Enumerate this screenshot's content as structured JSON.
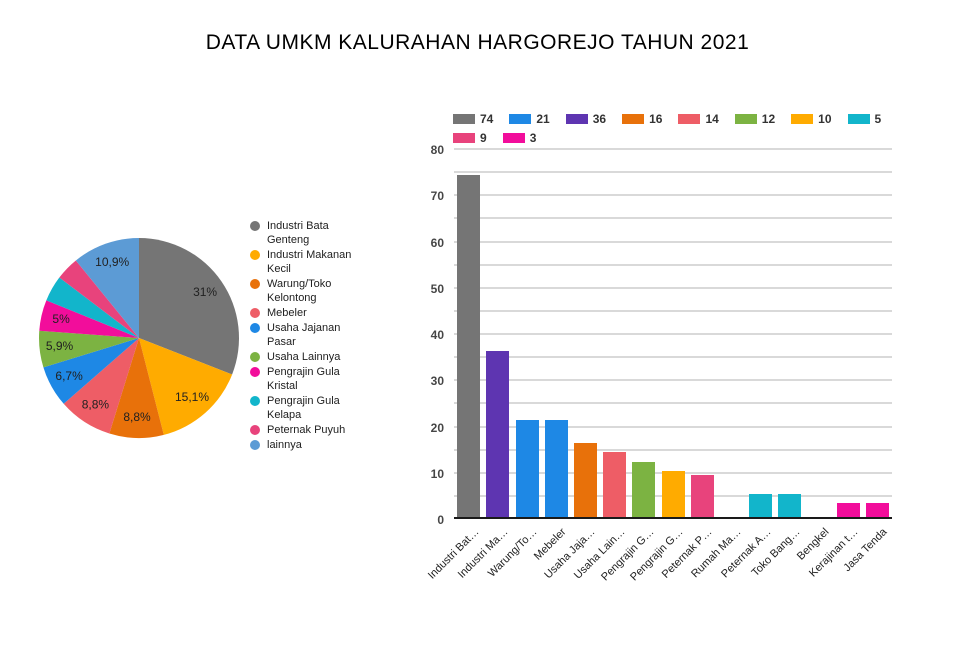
{
  "page": {
    "title": "DATA UMKM KALURAHAN HARGOREJO TAHUN 2021",
    "background": "#ffffff"
  },
  "chart_data": [
    {
      "type": "pie",
      "title": "",
      "legend_position": "right",
      "slices": [
        {
          "label": "Industri Bata Genteng",
          "percent": 31,
          "display": "31%",
          "color": "#757575"
        },
        {
          "label": "Industri Makanan Kecil",
          "percent": 15.1,
          "display": "15,1%",
          "color": "#FFAB00"
        },
        {
          "label": "Warung/Toko Kelontong",
          "percent": 8.8,
          "display": "8,8%",
          "color": "#E8710A"
        },
        {
          "label": "Mebeler",
          "percent": 8.8,
          "display": "8,8%",
          "color": "#EE5D66"
        },
        {
          "label": "Usaha Jajanan Pasar",
          "percent": 6.7,
          "display": "6,7%",
          "color": "#1E88E5"
        },
        {
          "label": "Usaha Lainnya",
          "percent": 5.9,
          "display": "5,9%",
          "color": "#7CB342"
        },
        {
          "label": "Pengrajin Gula Kristal",
          "percent": 5,
          "display": "5%",
          "color": "#F20D9B"
        },
        {
          "label": "Pengrajin Gula Kelapa",
          "percent": 4.2,
          "display": "",
          "color": "#12B5CB"
        },
        {
          "label": "Peternak Puyuh",
          "percent": 3.8,
          "display": "",
          "color": "#E8437C"
        },
        {
          "label": "lainnya",
          "percent": 10.9,
          "display": "10,9%",
          "color": "#5C9BD5"
        }
      ]
    },
    {
      "type": "bar",
      "title": "",
      "categories": [
        "Industri Bat…",
        "Industri Ma…",
        "Warung/To…",
        "Mebeler",
        "Usaha Jaja…",
        "Usaha Lain…",
        "Pengrajin G…",
        "Pengrajin G…",
        "Peternak P…",
        "Rumah Ma…",
        "Peternak A…",
        "Toko Bang…",
        "Bengkel",
        "Kerajinan t…",
        "Jasa Tenda"
      ],
      "values": [
        74,
        36,
        21,
        21,
        16,
        14,
        12,
        10,
        9,
        0,
        5,
        5,
        0,
        3,
        3
      ],
      "bar_colors": [
        "#757575",
        "#5E35B1",
        "#1E88E5",
        "#1E88E5",
        "#E8710A",
        "#EE5D66",
        "#7CB342",
        "#FFAB00",
        "#E8437C",
        null,
        "#12B5CB",
        "#12B5CB",
        null,
        "#F20D9B",
        "#F20D9B"
      ],
      "legend": [
        {
          "label": "74",
          "color": "#757575"
        },
        {
          "label": "21",
          "color": "#1E88E5"
        },
        {
          "label": "36",
          "color": "#5E35B1"
        },
        {
          "label": "16",
          "color": "#E8710A"
        },
        {
          "label": "14",
          "color": "#EE5D66"
        },
        {
          "label": "12",
          "color": "#7CB342"
        },
        {
          "label": "10",
          "color": "#FFAB00"
        },
        {
          "label": "5",
          "color": "#12B5CB"
        },
        {
          "label": "9",
          "color": "#E8437C"
        },
        {
          "label": "3",
          "color": "#F20D9B"
        }
      ],
      "xlabel": "",
      "ylabel": "",
      "ylim": [
        0,
        80
      ],
      "yticks": [
        0,
        10,
        20,
        30,
        40,
        50,
        60,
        70,
        80
      ],
      "grid_step": 5,
      "grid": true,
      "legend_position": "top"
    }
  ]
}
